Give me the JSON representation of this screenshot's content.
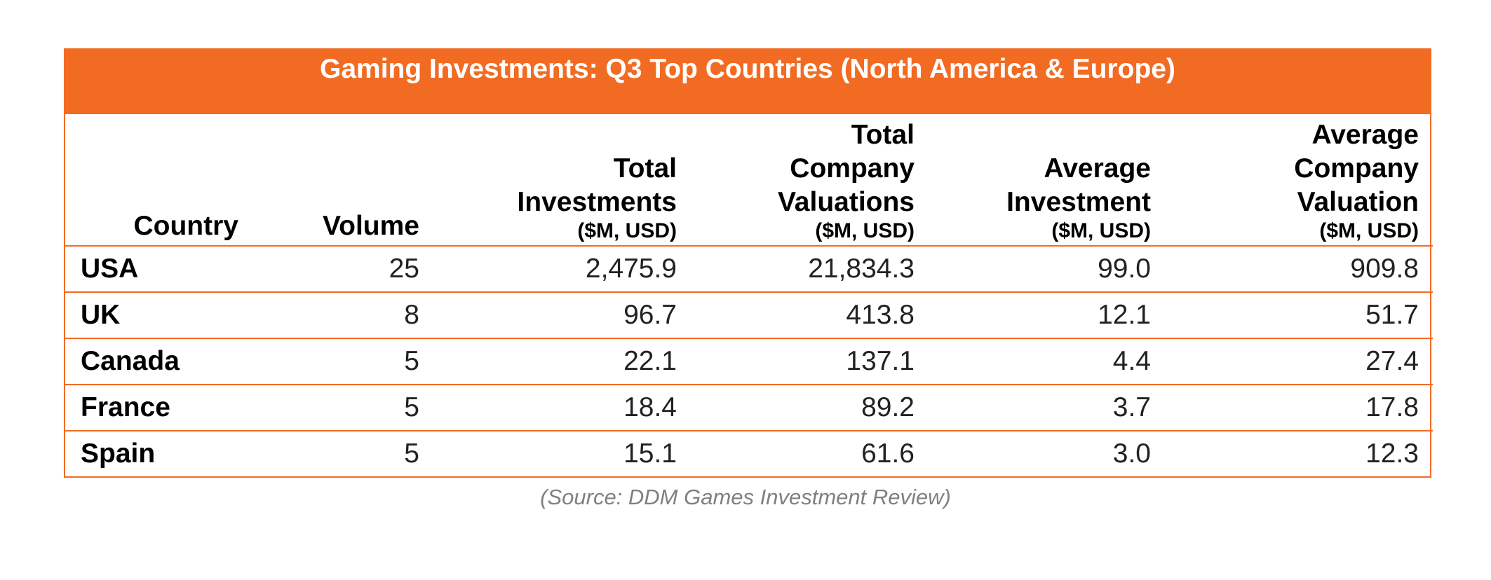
{
  "title": "Gaming Investments: Q3 Top Countries (North America & Europe)",
  "headers": {
    "country": "Country",
    "volume": "Volume",
    "total_investments": [
      "Total",
      "Investments"
    ],
    "total_valuations": [
      "Total",
      "Company",
      "Valuations"
    ],
    "average_investment": [
      "Average",
      "Investment"
    ],
    "average_valuation": [
      "Average",
      "Company",
      "Valuation"
    ],
    "unit": "($M, USD)"
  },
  "rows": [
    {
      "country": "USA",
      "volume": "25",
      "total_investments": "2,475.9",
      "total_valuations": "21,834.3",
      "average_investment": "99.0",
      "average_valuation": "909.8"
    },
    {
      "country": "UK",
      "volume": "8",
      "total_investments": "96.7",
      "total_valuations": "413.8",
      "average_investment": "12.1",
      "average_valuation": "51.7"
    },
    {
      "country": "Canada",
      "volume": "5",
      "total_investments": "22.1",
      "total_valuations": "137.1",
      "average_investment": "4.4",
      "average_valuation": "27.4"
    },
    {
      "country": "France",
      "volume": "5",
      "total_investments": "18.4",
      "total_valuations": "89.2",
      "average_investment": "3.7",
      "average_valuation": "17.8"
    },
    {
      "country": "Spain",
      "volume": "5",
      "total_investments": "15.1",
      "total_valuations": "61.6",
      "average_investment": "3.0",
      "average_valuation": "12.3"
    }
  ],
  "source": "(Source: DDM Games Investment Review)",
  "colors": {
    "accent": "#f26b22",
    "header_text": "#ffffff",
    "source_text": "#808080"
  },
  "chart_data": {
    "type": "table",
    "title": "Gaming Investments: Q3 Top Countries (North America & Europe)",
    "columns": [
      "Country",
      "Volume",
      "Total Investments ($M, USD)",
      "Total Company Valuations ($M, USD)",
      "Average Investment ($M, USD)",
      "Average Company Valuation ($M, USD)"
    ],
    "categories": [
      "USA",
      "UK",
      "Canada",
      "France",
      "Spain"
    ],
    "series": [
      {
        "name": "Volume",
        "values": [
          25,
          8,
          5,
          5,
          5
        ]
      },
      {
        "name": "Total Investments ($M, USD)",
        "values": [
          2475.9,
          96.7,
          22.1,
          18.4,
          15.1
        ]
      },
      {
        "name": "Total Company Valuations ($M, USD)",
        "values": [
          21834.3,
          413.8,
          137.1,
          89.2,
          61.6
        ]
      },
      {
        "name": "Average Investment ($M, USD)",
        "values": [
          99.0,
          12.1,
          4.4,
          3.7,
          3.0
        ]
      },
      {
        "name": "Average Company Valuation ($M, USD)",
        "values": [
          909.8,
          51.7,
          27.4,
          17.8,
          12.3
        ]
      }
    ]
  }
}
